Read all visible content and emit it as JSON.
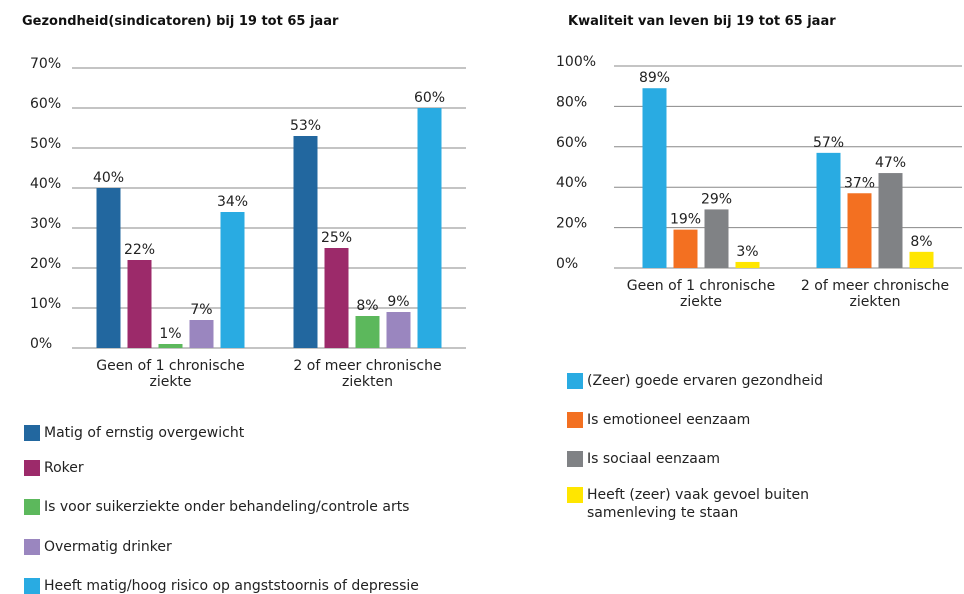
{
  "chart_data": [
    {
      "type": "bar",
      "title": "Gezondheid(sindicatoren) bij 19 tot 65 jaar",
      "categories": [
        "Geen of 1 chronische ziekte",
        "2 of meer chronische ziekten"
      ],
      "ylim": [
        0,
        70
      ],
      "yticks": [
        {
          "value": 0,
          "label": "0%"
        },
        {
          "value": 10,
          "label": "10%"
        },
        {
          "value": 20,
          "label": "20%"
        },
        {
          "value": 30,
          "label": "30%"
        },
        {
          "value": 40,
          "label": "40%"
        },
        {
          "value": 50,
          "label": "50%"
        },
        {
          "value": 60,
          "label": "60%"
        },
        {
          "value": 70,
          "label": "70%"
        }
      ],
      "grid": true,
      "series": [
        {
          "name": "Matig of ernstig overgewicht",
          "color": "#22679f",
          "values": [
            40,
            53
          ],
          "value_labels": [
            "40%",
            "53%"
          ]
        },
        {
          "name": "Roker",
          "color": "#9c2a6a",
          "values": [
            22,
            25
          ],
          "value_labels": [
            "22%",
            "25%"
          ]
        },
        {
          "name": "Is voor suikerziekte onder behandeling/controle arts",
          "color": "#5cb85c",
          "values": [
            1,
            8
          ],
          "value_labels": [
            "1%",
            "8%"
          ]
        },
        {
          "name": "Overmatig drinker",
          "color": "#9a86bf",
          "values": [
            7,
            9
          ],
          "value_labels": [
            "7%",
            "9%"
          ]
        },
        {
          "name": "Heeft matig/hoog risico op angststoornis of depressie",
          "color": "#29abe2",
          "values": [
            34,
            60
          ],
          "value_labels": [
            "34%",
            "60%"
          ]
        }
      ]
    },
    {
      "type": "bar",
      "title": "Kwaliteit van leven bij 19 tot 65 jaar",
      "categories": [
        "Geen of 1 chronische ziekte",
        "2 of meer chronische ziekten"
      ],
      "ylim": [
        0,
        100
      ],
      "yticks": [
        {
          "value": 0,
          "label": "0%"
        },
        {
          "value": 20,
          "label": "20%"
        },
        {
          "value": 40,
          "label": "40%"
        },
        {
          "value": 60,
          "label": "60%"
        },
        {
          "value": 80,
          "label": "80%"
        },
        {
          "value": 100,
          "label": "100%"
        }
      ],
      "grid": true,
      "series": [
        {
          "name": "(Zeer) goede ervaren gezondheid",
          "color": "#29abe2",
          "values": [
            89,
            57
          ],
          "value_labels": [
            "89%",
            "57%"
          ]
        },
        {
          "name": "Is emotioneel eenzaam",
          "color": "#f37021",
          "values": [
            19,
            37
          ],
          "value_labels": [
            "19%",
            "37%"
          ]
        },
        {
          "name": "Is sociaal eenzaam",
          "color": "#808285",
          "values": [
            29,
            47
          ],
          "value_labels": [
            "29%",
            "47%"
          ]
        },
        {
          "name": "Heeft (zeer) vaak gevoel buiten samenleving te staan",
          "color": "#ffe600",
          "values": [
            3,
            8
          ],
          "value_labels": [
            "3%",
            "8%"
          ]
        }
      ]
    }
  ]
}
